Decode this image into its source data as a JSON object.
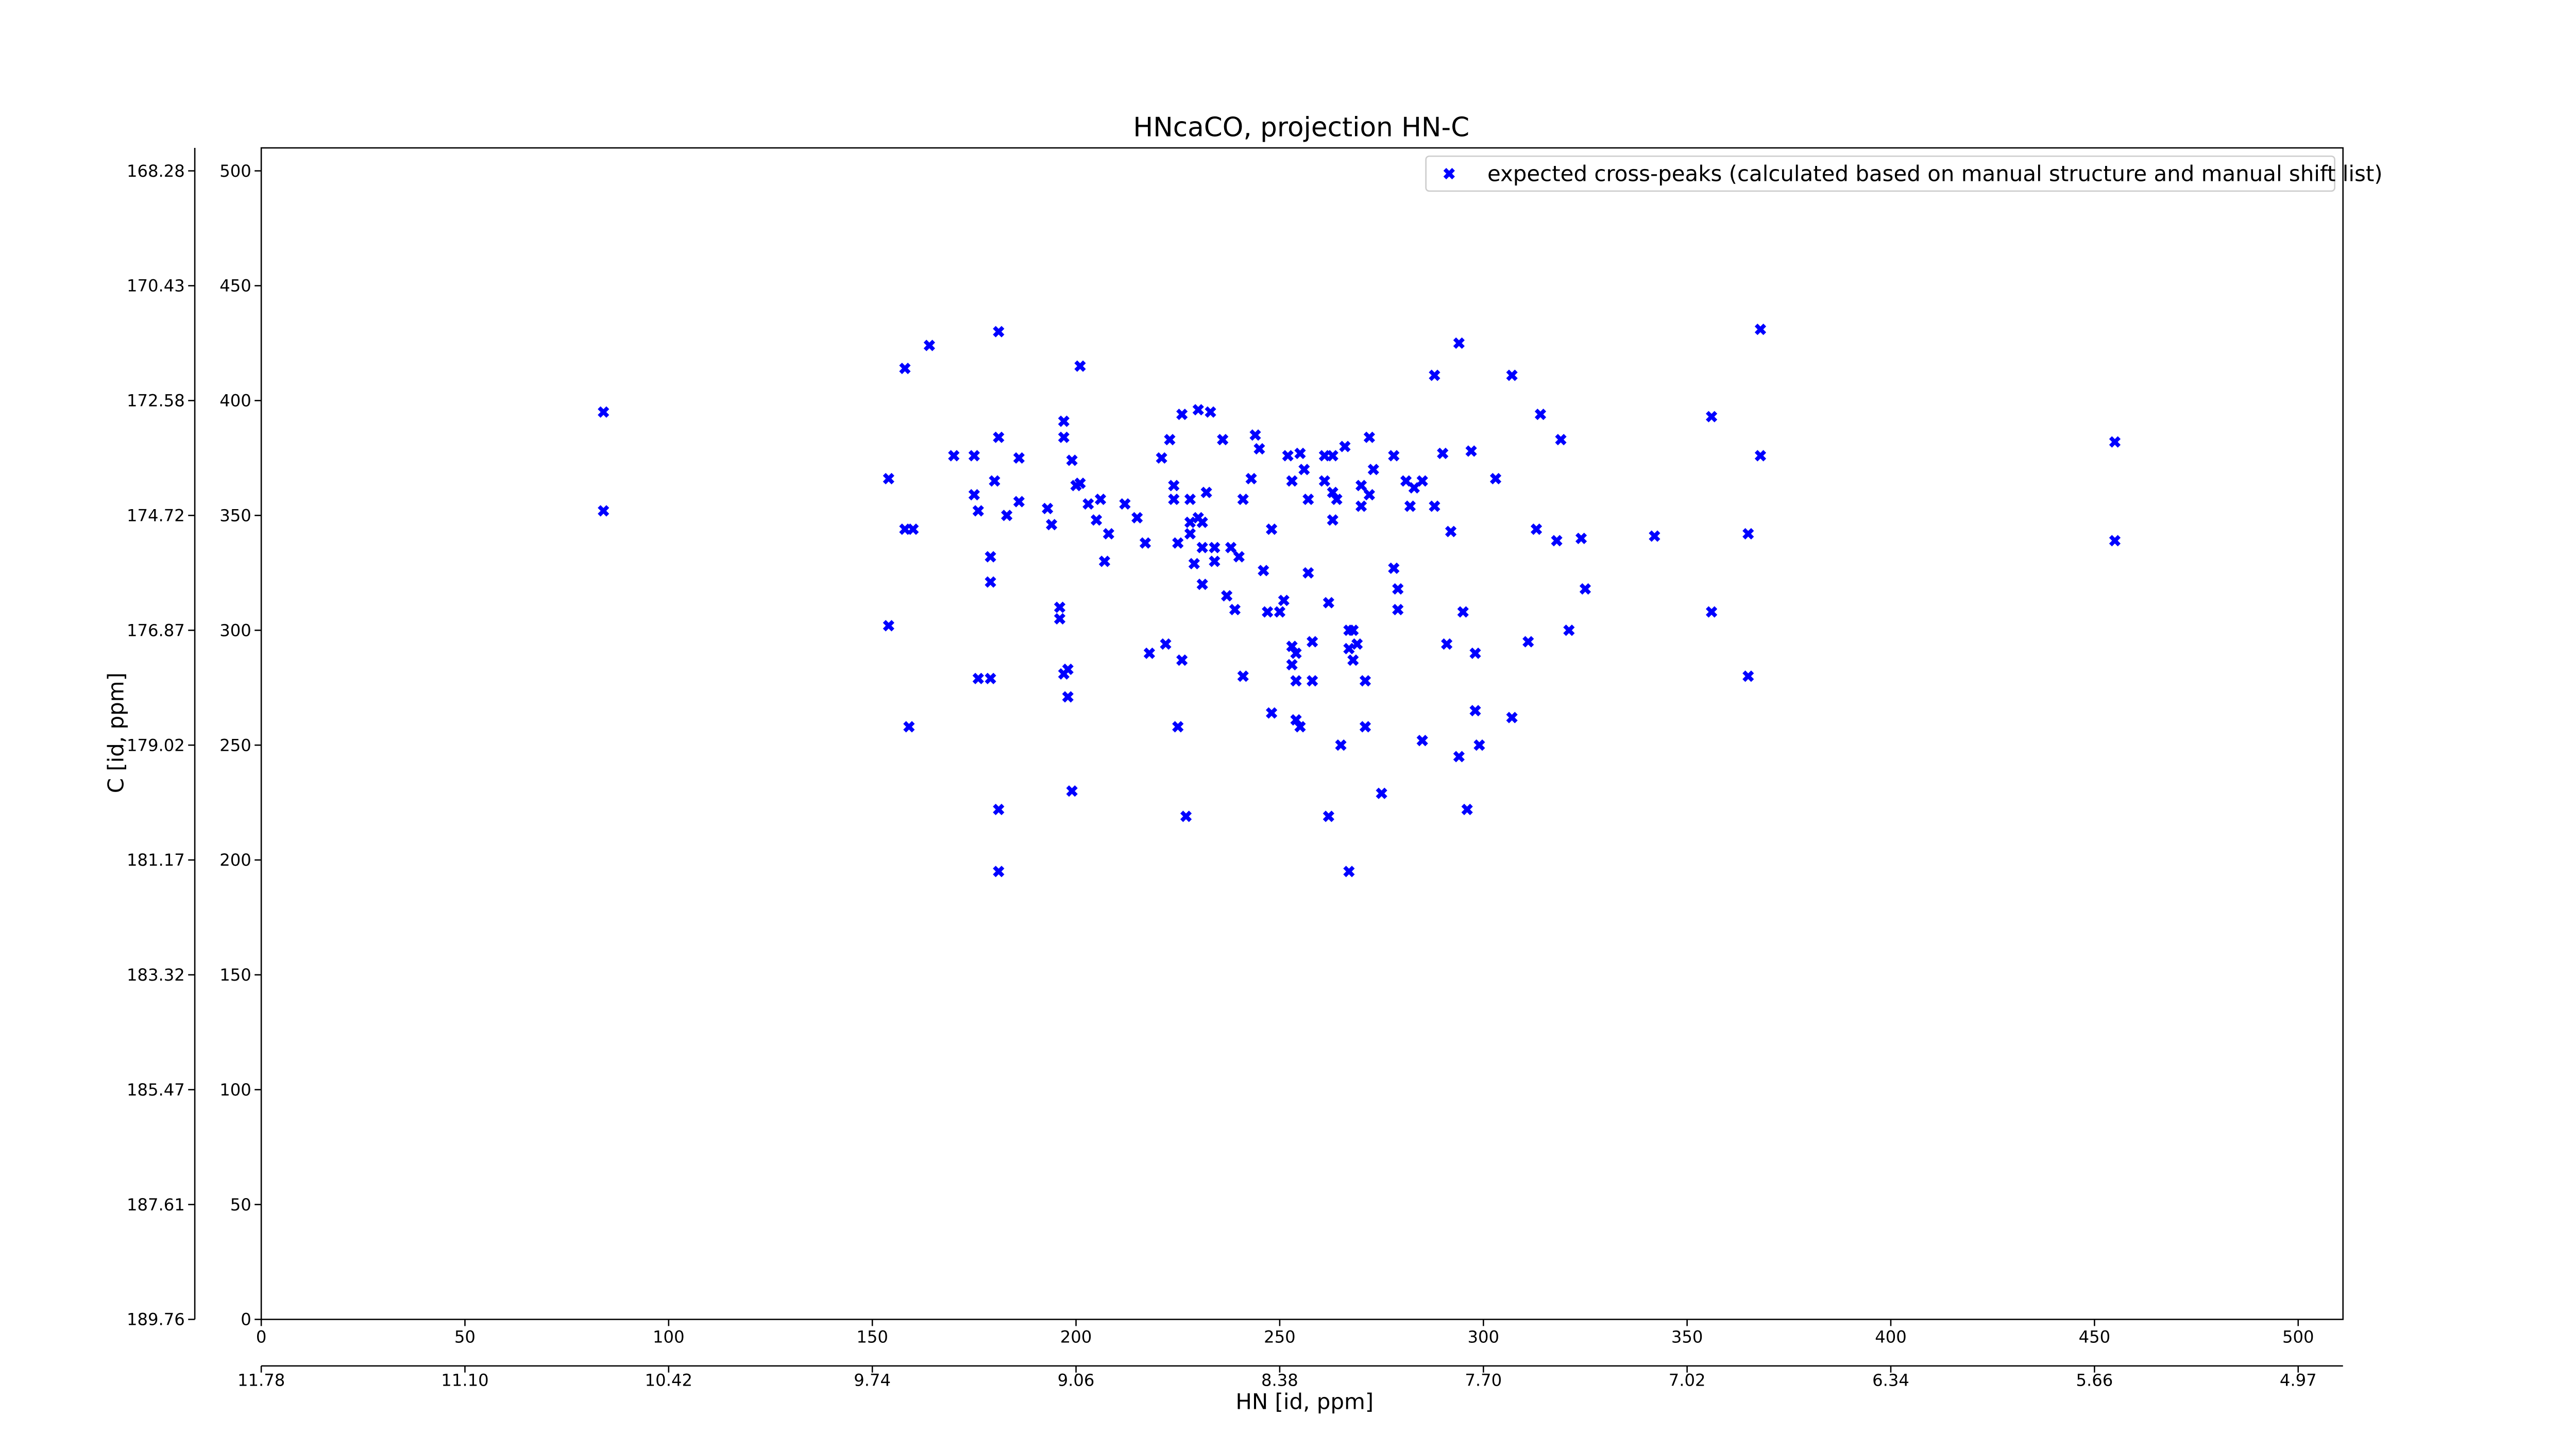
{
  "chart_data": {
    "type": "scatter",
    "title": "HNcaCO, projection HN-C",
    "xlabel": "HN [id, ppm]",
    "ylabel": "C [id, ppm]",
    "xlim": [
      0,
      511
    ],
    "ylim": [
      0,
      510
    ],
    "xticks": [
      0,
      50,
      100,
      150,
      200,
      250,
      300,
      350,
      400,
      450,
      500
    ],
    "yticks": [
      0,
      50,
      100,
      150,
      200,
      250,
      300,
      350,
      400,
      450,
      500
    ],
    "x2ticks": [
      {
        "value": 0,
        "label": "11.78"
      },
      {
        "value": 50,
        "label": "11.10"
      },
      {
        "value": 100,
        "label": "10.42"
      },
      {
        "value": 150,
        "label": "9.74"
      },
      {
        "value": 200,
        "label": "9.06"
      },
      {
        "value": 250,
        "label": "8.38"
      },
      {
        "value": 300,
        "label": "7.70"
      },
      {
        "value": 350,
        "label": "7.02"
      },
      {
        "value": 400,
        "label": "6.34"
      },
      {
        "value": 450,
        "label": "5.66"
      },
      {
        "value": 500,
        "label": "4.97"
      }
    ],
    "y2ticks": [
      {
        "value": 0,
        "label": "189.76"
      },
      {
        "value": 50,
        "label": "187.61"
      },
      {
        "value": 100,
        "label": "185.47"
      },
      {
        "value": 150,
        "label": "183.32"
      },
      {
        "value": 200,
        "label": "181.17"
      },
      {
        "value": 250,
        "label": "179.02"
      },
      {
        "value": 300,
        "label": "176.87"
      },
      {
        "value": 350,
        "label": "174.72"
      },
      {
        "value": 400,
        "label": "172.58"
      },
      {
        "value": 450,
        "label": "170.43"
      },
      {
        "value": 500,
        "label": "168.28"
      }
    ],
    "legend": "upper right",
    "series": [
      {
        "name": "expected cross-peaks (calculated based on manual structure and manual shift list)",
        "color": "#0000ff",
        "x": [
          84,
          84,
          154,
          154,
          158,
          159,
          164,
          158,
          160,
          170,
          175,
          175,
          176,
          180,
          181,
          179,
          179,
          176,
          179,
          181,
          181,
          181,
          183,
          186,
          186,
          193,
          194,
          196,
          196,
          197,
          197,
          197,
          198,
          198,
          199,
          199,
          201,
          201,
          200,
          203,
          205,
          206,
          207,
          208,
          212,
          215,
          217,
          218,
          221,
          222,
          223,
          224,
          224,
          225,
          225,
          226,
          226,
          227,
          228,
          228,
          228,
          229,
          230,
          230,
          231,
          231,
          231,
          232,
          233,
          234,
          234,
          236,
          237,
          238,
          239,
          240,
          241,
          241,
          243,
          244,
          245,
          246,
          247,
          248,
          248,
          250,
          251,
          252,
          253,
          253,
          253,
          254,
          254,
          254,
          255,
          255,
          256,
          257,
          257,
          258,
          258,
          261,
          261,
          262,
          262,
          263,
          263,
          263,
          264,
          265,
          266,
          267,
          267,
          267,
          268,
          268,
          269,
          270,
          270,
          271,
          271,
          272,
          272,
          273,
          275,
          278,
          278,
          279,
          279,
          281,
          282,
          283,
          285,
          285,
          288,
          288,
          290,
          291,
          292,
          294,
          294,
          295,
          296,
          297,
          298,
          298,
          299,
          303,
          307,
          307,
          311,
          313,
          314,
          318,
          319,
          321,
          324,
          325,
          342,
          356,
          356,
          365,
          365,
          368,
          368,
          455,
          455
        ],
        "values": [
          395,
          352,
          366,
          302,
          414,
          258,
          424,
          344,
          344,
          376,
          376,
          359,
          352,
          365,
          384,
          332,
          321,
          279,
          279,
          430,
          222,
          195,
          350,
          356,
          375,
          353,
          346,
          310,
          305,
          391,
          384,
          281,
          283,
          271,
          230,
          374,
          364,
          415,
          363,
          355,
          348,
          357,
          330,
          342,
          355,
          349,
          338,
          290,
          375,
          294,
          383,
          357,
          363,
          338,
          258,
          287,
          394,
          219,
          357,
          347,
          342,
          329,
          396,
          349,
          347,
          336,
          320,
          360,
          395,
          336,
          330,
          383,
          315,
          336,
          309,
          332,
          357,
          280,
          366,
          385,
          379,
          326,
          308,
          344,
          264,
          308,
          313,
          376,
          293,
          285,
          365,
          290,
          278,
          261,
          377,
          258,
          370,
          325,
          357,
          295,
          278,
          365,
          376,
          219,
          312,
          360,
          376,
          348,
          357,
          250,
          380,
          195,
          300,
          292,
          300,
          287,
          294,
          354,
          363,
          278,
          258,
          359,
          384,
          370,
          229,
          327,
          376,
          318,
          309,
          365,
          354,
          362,
          252,
          365,
          411,
          354,
          377,
          294,
          343,
          245,
          425,
          308,
          222,
          378,
          290,
          265,
          250,
          366,
          411,
          262,
          295,
          344,
          394,
          339,
          383,
          300,
          340,
          318,
          341,
          393,
          308,
          280,
          342,
          431,
          376,
          382,
          339
        ]
      }
    ]
  }
}
